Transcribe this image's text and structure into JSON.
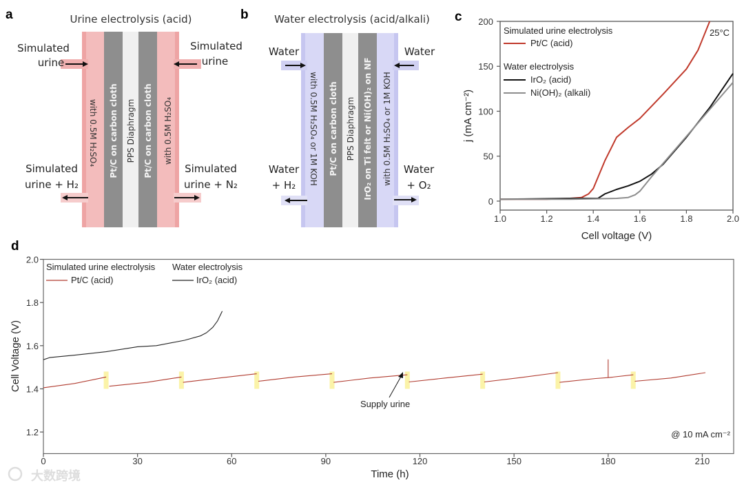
{
  "panel_a": {
    "letter": "a",
    "title": "Urine electrolysis (acid)",
    "inlet_left": [
      "Simulated",
      "urine"
    ],
    "inlet_right": [
      "Simulated",
      "urine"
    ],
    "outlet_left": [
      "Simulated",
      "urine + H₂"
    ],
    "outlet_right": [
      "Simulated",
      "urine + N₂"
    ],
    "electrolyte_left": "with 0.5M H₂SO₄",
    "electrode_left": "Pt/C on carbon cloth",
    "membrane": "PPS Diaphragm",
    "electrode_right": "Pt/C on carbon cloth",
    "electrolyte_right": "with 0.5M H₂SO₄",
    "color": "#f2b3b3"
  },
  "panel_b": {
    "letter": "b",
    "title": "Water electrolysis (acid/alkali)",
    "inlet_left": "Water",
    "inlet_right": "Water",
    "outlet_left": [
      "Water",
      "+ H₂"
    ],
    "outlet_right": [
      "Water",
      "+ O₂"
    ],
    "electrolyte_left": "with 0.5M H₂SO₄ or 1M KOH",
    "electrode_left": "Pt/C on carbon cloth",
    "membrane": "PPS Diaphragm",
    "electrode_right": "IrO₂ on Ti felt or Ni(OH)₂ on NF",
    "electrolyte_right": "with 0.5M H₂SO₄ or 1M KOH",
    "color": "#d4d4f4"
  },
  "chart_data": [
    {
      "panel": "c",
      "type": "line",
      "xlabel": "Cell voltage (V)",
      "ylabel": "j (mA cm⁻²)",
      "xlim": [
        1.0,
        2.0
      ],
      "ylim": [
        -10,
        200
      ],
      "xticks": [
        "1.0",
        "1.2",
        "1.4",
        "1.6",
        "1.8",
        "2.0"
      ],
      "yticks": [
        "0",
        "50",
        "100",
        "150",
        "200"
      ],
      "annotation": "25°C",
      "legend_groups": [
        "Simulated urine electrolysis",
        "Water electrolysis"
      ],
      "legend_placement": "top-left",
      "series": [
        {
          "name": "Pt/C (acid)",
          "group": "Simulated urine electrolysis",
          "color": "#c0392b",
          "x": [
            1.0,
            1.2,
            1.3,
            1.35,
            1.38,
            1.4,
            1.45,
            1.5,
            1.55,
            1.6,
            1.7,
            1.8,
            1.85,
            1.9
          ],
          "y": [
            2,
            2,
            3,
            4,
            8,
            14,
            45,
            71,
            82,
            92,
            119,
            147,
            168,
            200
          ]
        },
        {
          "name": "IrO₂ (acid)",
          "group": "Water electrolysis",
          "color": "#111111",
          "x": [
            1.0,
            1.3,
            1.42,
            1.45,
            1.5,
            1.55,
            1.6,
            1.65,
            1.7,
            1.8,
            1.9,
            2.0
          ],
          "y": [
            2,
            3,
            3,
            8,
            13,
            17,
            22,
            30,
            41,
            71,
            104,
            142
          ]
        },
        {
          "name": "Ni(OH)₂ (alkali)",
          "group": "Water electrolysis",
          "color": "#8c8c8c",
          "x": [
            1.0,
            1.3,
            1.5,
            1.55,
            1.58,
            1.6,
            1.65,
            1.7,
            1.8,
            1.9,
            2.0
          ],
          "y": [
            2,
            2,
            3,
            4,
            7,
            11,
            27,
            42,
            72,
            102,
            132
          ]
        }
      ]
    },
    {
      "panel": "d",
      "type": "line",
      "xlabel": "Time (h)",
      "ylabel": "Cell Voltage (V)",
      "xlim": [
        0,
        220
      ],
      "ylim": [
        1.1,
        2.0
      ],
      "xticks": [
        "0",
        "30",
        "60",
        "90",
        "120",
        "150",
        "180",
        "210"
      ],
      "yticks": [
        "1.2",
        "1.4",
        "1.6",
        "1.8",
        "2.0"
      ],
      "annotation": "@ 10 mA cm⁻²",
      "arrow_label": "Supply urine",
      "supply_urine_times": [
        20,
        44,
        68,
        92,
        116,
        140,
        164,
        188
      ],
      "legend_groups": [
        "Simulated urine electrolysis",
        "Water electrolysis"
      ],
      "legend_placement": "top-left",
      "series": [
        {
          "name": "Pt/C (acid)",
          "group": "Simulated urine electrolysis",
          "color": "#b03a2e",
          "segments": [
            {
              "x": [
                0,
                10,
                20
              ],
              "y": [
                1.405,
                1.425,
                1.455
              ]
            },
            {
              "x": [
                21,
                33,
                44
              ],
              "y": [
                1.412,
                1.43,
                1.455
              ]
            },
            {
              "x": [
                44.5,
                56,
                68
              ],
              "y": [
                1.43,
                1.45,
                1.47
              ]
            },
            {
              "x": [
                68.5,
                80,
                92
              ],
              "y": [
                1.435,
                1.455,
                1.47
              ]
            },
            {
              "x": [
                92.5,
                104,
                116
              ],
              "y": [
                1.43,
                1.45,
                1.465
              ]
            },
            {
              "x": [
                116.5,
                128,
                140
              ],
              "y": [
                1.432,
                1.45,
                1.468
              ]
            },
            {
              "x": [
                140.5,
                152,
                164
              ],
              "y": [
                1.432,
                1.452,
                1.475
              ]
            },
            {
              "x": [
                164.5,
                176,
                180,
                180,
                180,
                188
              ],
              "y": [
                1.43,
                1.448,
                1.452,
                1.535,
                1.452,
                1.465
              ]
            },
            {
              "x": [
                188.5,
                200,
                211
              ],
              "y": [
                1.435,
                1.45,
                1.475
              ]
            }
          ]
        },
        {
          "name": "IrO₂ (acid)",
          "group": "Water electrolysis",
          "color": "#222222",
          "segments": [
            {
              "x": [
                0,
                2,
                10,
                20,
                30,
                36,
                45,
                50,
                52,
                54,
                55.5,
                57
              ],
              "y": [
                1.535,
                1.545,
                1.556,
                1.572,
                1.595,
                1.6,
                1.625,
                1.645,
                1.66,
                1.685,
                1.715,
                1.76
              ]
            }
          ]
        }
      ]
    }
  ],
  "watermark": "大数跨境"
}
